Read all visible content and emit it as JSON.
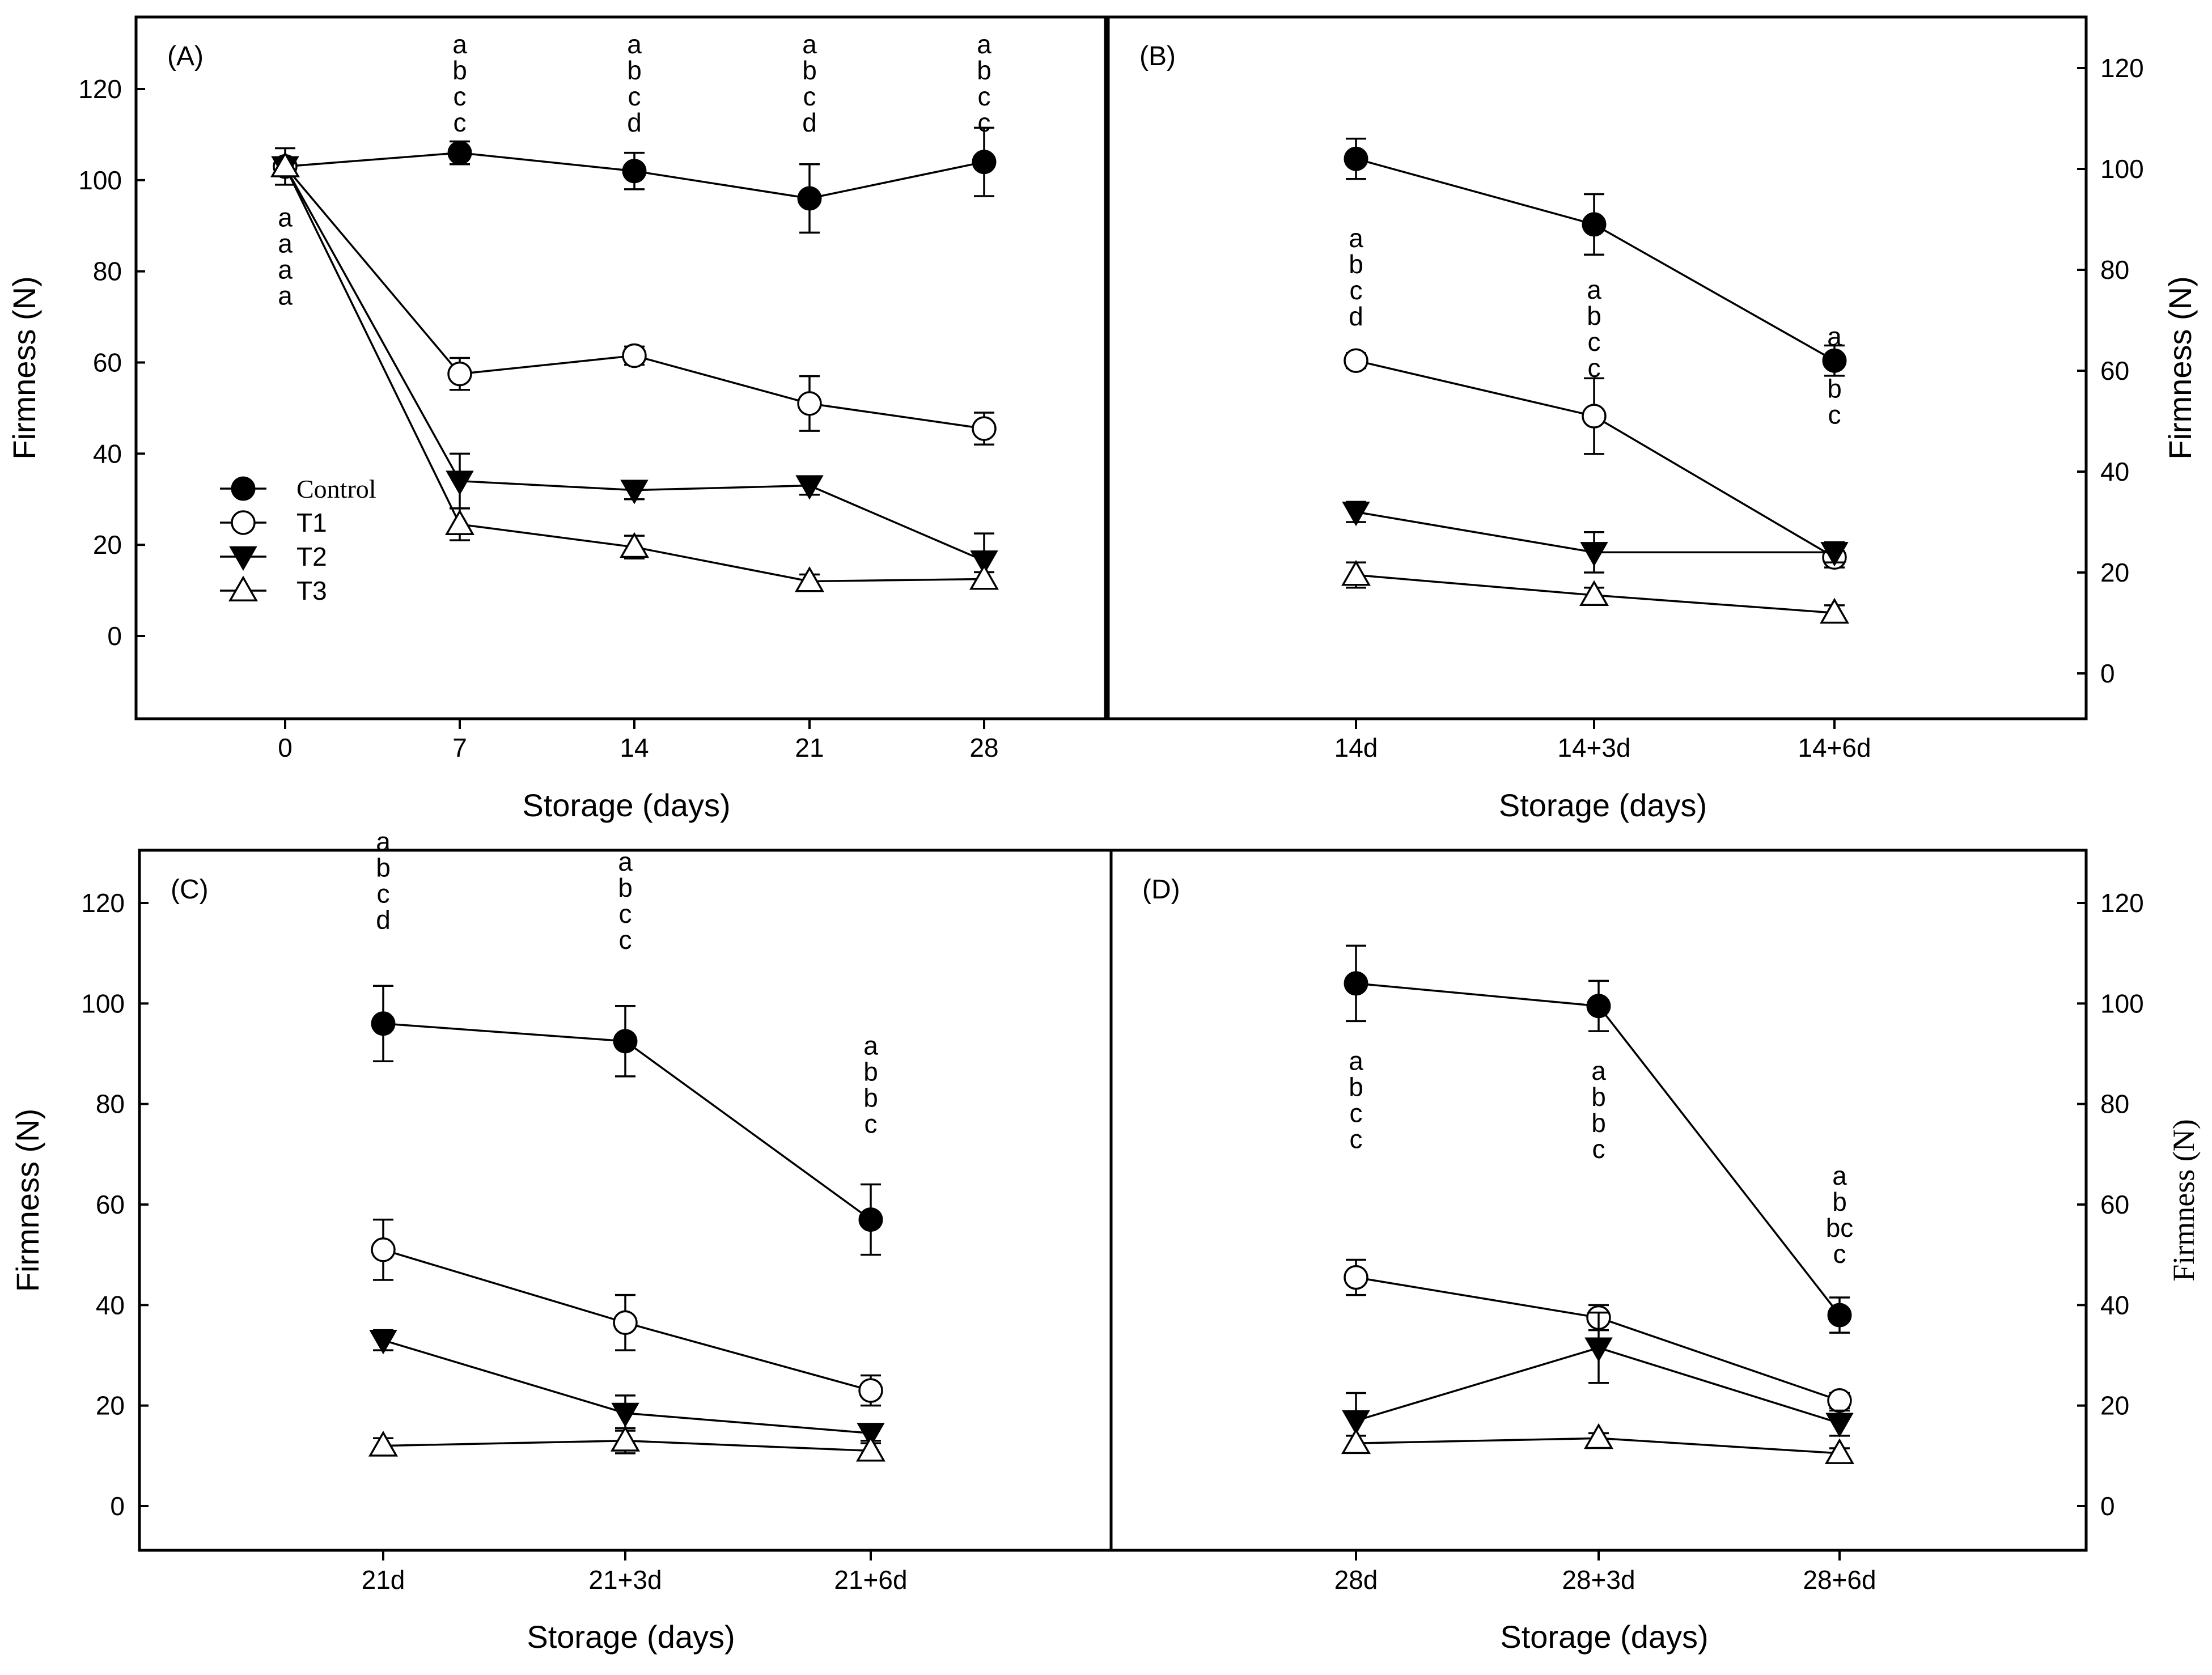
{
  "chart_data": [
    {
      "panel": "(A)",
      "type": "line",
      "categories": [
        "0",
        "7",
        "14",
        "21",
        "28"
      ],
      "xlabel": "Storage (days)",
      "ylabel": "Firmness (N)",
      "ylim": [
        -18,
        134
      ],
      "yticks": [
        "0",
        "20",
        "40",
        "60",
        "80",
        "100",
        "120"
      ],
      "grid": false,
      "legend_position": "lower-left",
      "series": [
        {
          "name": "Control",
          "marker": "filled-circle",
          "values": [
            103,
            106,
            102,
            96,
            104
          ],
          "errors": [
            4,
            2.5,
            4,
            7.5,
            7.5
          ]
        },
        {
          "name": "T1",
          "marker": "open-circle",
          "values": [
            103,
            57.5,
            61.5,
            51,
            45.5
          ],
          "errors": [
            0,
            3.5,
            2,
            6,
            3.5
          ]
        },
        {
          "name": "T2",
          "marker": "filled-triangle-down",
          "values": [
            103,
            34,
            32,
            33,
            16.5
          ],
          "errors": [
            0,
            6,
            2,
            2,
            6
          ]
        },
        {
          "name": "T3",
          "marker": "open-triangle-up",
          "values": [
            103,
            24.5,
            19.5,
            12,
            12.5
          ],
          "errors": [
            0,
            3.5,
            2.5,
            1.5,
            1.5
          ]
        }
      ],
      "annotations": [
        {
          "x": "0",
          "lines": [
            "a",
            "a",
            "a",
            "a"
          ],
          "position": "below"
        },
        {
          "x": "7",
          "lines": [
            "a",
            "b",
            "c",
            "c"
          ],
          "position": "above"
        },
        {
          "x": "14",
          "lines": [
            "a",
            "b",
            "c",
            "d"
          ],
          "position": "above"
        },
        {
          "x": "21",
          "lines": [
            "a",
            "b",
            "c",
            "d"
          ],
          "position": "above"
        },
        {
          "x": "28",
          "lines": [
            "a",
            "b",
            "c",
            "c"
          ],
          "position": "above"
        }
      ]
    },
    {
      "panel": "(B)",
      "type": "line",
      "categories": [
        "14d",
        "14+3d",
        "14+6d"
      ],
      "xlabel": "Storage (days)",
      "ylabel": "Firmness (N)",
      "ylim": [
        -10,
        130
      ],
      "yticks": [
        "0",
        "20",
        "40",
        "60",
        "80",
        "100",
        "120"
      ],
      "grid": false,
      "series": [
        {
          "name": "Control",
          "marker": "filled-circle",
          "values": [
            102,
            89,
            62
          ],
          "errors": [
            4,
            6,
            3
          ]
        },
        {
          "name": "T1",
          "marker": "open-circle",
          "values": [
            62,
            51,
            23
          ],
          "errors": [
            1.5,
            7.5,
            2
          ]
        },
        {
          "name": "T2",
          "marker": "filled-triangle-down",
          "values": [
            32,
            24,
            24
          ],
          "errors": [
            2,
            4,
            2
          ]
        },
        {
          "name": "T3",
          "marker": "open-triangle-up",
          "values": [
            19.5,
            15.5,
            12
          ],
          "errors": [
            2.5,
            1.5,
            1.5
          ]
        }
      ],
      "annotations": [
        {
          "x": "14d",
          "lines": [
            "a",
            "b",
            "c",
            "d"
          ]
        },
        {
          "x": "14+3d",
          "lines": [
            "a",
            "b",
            "c",
            "c"
          ]
        },
        {
          "x": "14+6d",
          "lines": [
            "a",
            "b",
            "b",
            "c"
          ]
        }
      ]
    },
    {
      "panel": "(C)",
      "type": "line",
      "categories": [
        "21d",
        "21+3d",
        "21+6d"
      ],
      "xlabel": "Storage (days)",
      "ylabel": "Firmness (N)",
      "ylim": [
        -9,
        130
      ],
      "yticks": [
        "0",
        "20",
        "40",
        "60",
        "80",
        "100",
        "120"
      ],
      "grid": false,
      "series": [
        {
          "name": "Control",
          "marker": "filled-circle",
          "values": [
            96,
            92.5,
            57
          ],
          "errors": [
            7.5,
            7,
            7
          ]
        },
        {
          "name": "T1",
          "marker": "open-circle",
          "values": [
            51,
            36.5,
            23
          ],
          "errors": [
            6,
            5.5,
            3
          ]
        },
        {
          "name": "T2",
          "marker": "filled-triangle-down",
          "values": [
            33,
            18.5,
            14.5
          ],
          "errors": [
            2,
            3.5,
            1.5
          ]
        },
        {
          "name": "T3",
          "marker": "open-triangle-up",
          "values": [
            12,
            13,
            11
          ],
          "errors": [
            1.5,
            2.5,
            1.5
          ]
        }
      ],
      "annotations": [
        {
          "x": "21d",
          "lines": [
            "a",
            "b",
            "c",
            "d"
          ]
        },
        {
          "x": "21+3d",
          "lines": [
            "a",
            "b",
            "c",
            "c"
          ]
        },
        {
          "x": "21+6d",
          "lines": [
            "a",
            "b",
            "b",
            "c"
          ]
        }
      ]
    },
    {
      "panel": "(D)",
      "type": "line",
      "categories": [
        "28d",
        "28+3d",
        "28+6d"
      ],
      "xlabel": "Storage (days)",
      "ylabel": "Firmness (N)",
      "ylim": [
        -9,
        130
      ],
      "yticks": [
        "0",
        "20",
        "40",
        "60",
        "80",
        "100",
        "120"
      ],
      "grid": false,
      "series": [
        {
          "name": "Control",
          "marker": "filled-circle",
          "values": [
            104,
            99.5,
            38
          ],
          "errors": [
            7.5,
            5,
            3.5
          ]
        },
        {
          "name": "T1",
          "marker": "open-circle",
          "values": [
            45.5,
            37.5,
            21
          ],
          "errors": [
            3.5,
            2.5,
            1.5
          ]
        },
        {
          "name": "T2",
          "marker": "filled-triangle-down",
          "values": [
            17,
            31.5,
            16.5
          ],
          "errors": [
            5.5,
            7,
            2.5
          ]
        },
        {
          "name": "T3",
          "marker": "open-triangle-up",
          "values": [
            12.5,
            13.5,
            10.5
          ],
          "errors": [
            1.5,
            1,
            1
          ]
        }
      ],
      "annotations": [
        {
          "x": "28d",
          "lines": [
            "a",
            "b",
            "c",
            "c"
          ]
        },
        {
          "x": "28+3d",
          "lines": [
            "a",
            "b",
            "b",
            "c"
          ]
        },
        {
          "x": "28+6d",
          "lines": [
            "a",
            "b",
            "bc",
            "c"
          ]
        }
      ]
    }
  ]
}
